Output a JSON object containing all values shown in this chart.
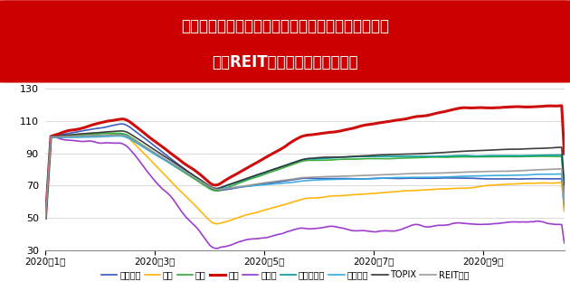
{
  "title_line1": "投資口価格は一時的に下落したものの、徐々に回復",
  "title_line2": "物流REITは相対的に堅調に推移",
  "title_bg_color": "#CC0000",
  "title_text_color": "#FFFFFF",
  "bg_color": "#FFFFFF",
  "chart_bg_color": "#FFFFFF",
  "ylim": [
    30,
    130
  ],
  "yticks": [
    30,
    50,
    70,
    90,
    110,
    130
  ],
  "xtick_labels": [
    "2020年1月",
    "2020年3月",
    "2020年5月",
    "2020年7月",
    "2020年9月"
  ],
  "legend_items": [
    {
      "label": "オフィス",
      "color": "#3355BB",
      "lw": 1.2
    },
    {
      "label": "商業",
      "color": "#FFB300",
      "lw": 1.2
    },
    {
      "label": "住宅",
      "color": "#33AA33",
      "lw": 1.2
    },
    {
      "label": "物流",
      "color": "#CC0000",
      "lw": 2.2
    },
    {
      "label": "ホテル",
      "color": "#9933CC",
      "lw": 1.2
    },
    {
      "label": "ヘルスケア",
      "color": "#009999",
      "lw": 1.2
    },
    {
      "label": "複合総合",
      "color": "#33AADD",
      "lw": 1.2
    },
    {
      "label": "TOPIX",
      "color": "#333333",
      "lw": 1.2
    },
    {
      "label": "REIT指数",
      "color": "#999999",
      "lw": 1.2
    }
  ],
  "n_points": 200
}
